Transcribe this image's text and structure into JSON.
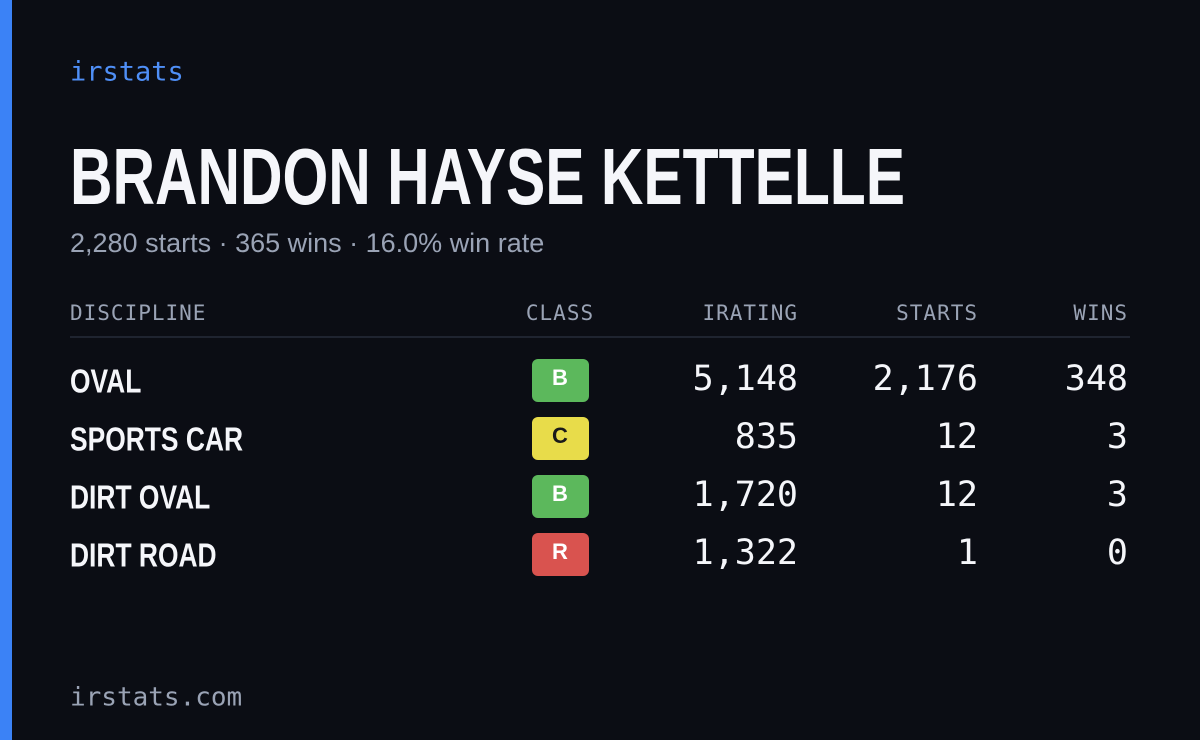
{
  "brand": "irstats",
  "header": {
    "title": "BRANDON HAYSE KETTELLE",
    "subtitle": "2,280 starts · 365 wins · 16.0% win rate"
  },
  "table": {
    "columns": [
      "DISCIPLINE",
      "CLASS",
      "IRATING",
      "STARTS",
      "WINS"
    ],
    "rows": [
      {
        "discipline": "OVAL",
        "class": "B",
        "class_color": "#5cb85c",
        "class_text_color": "#ffffff",
        "irating": "5,148",
        "starts": "2,176",
        "wins": "348"
      },
      {
        "discipline": "SPORTS CAR",
        "class": "C",
        "class_color": "#e8dc4a",
        "class_text_color": "#1a1a1a",
        "irating": "835",
        "starts": "12",
        "wins": "3"
      },
      {
        "discipline": "DIRT OVAL",
        "class": "B",
        "class_color": "#5cb85c",
        "class_text_color": "#ffffff",
        "irating": "1,720",
        "starts": "12",
        "wins": "3"
      },
      {
        "discipline": "DIRT ROAD",
        "class": "R",
        "class_color": "#d9534f",
        "class_text_color": "#ffffff",
        "irating": "1,322",
        "starts": "1",
        "wins": "0"
      }
    ]
  },
  "footer": "irstats.com"
}
